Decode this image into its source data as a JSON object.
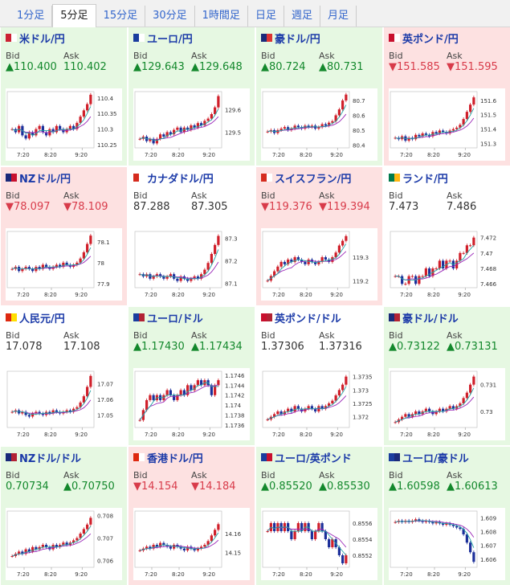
{
  "tabs": [
    {
      "label": "1分足",
      "active": false
    },
    {
      "label": "5分足",
      "active": true
    },
    {
      "label": "15分足",
      "active": false
    },
    {
      "label": "30分足",
      "active": false
    },
    {
      "label": "1時間足",
      "active": false
    },
    {
      "label": "日足",
      "active": false
    },
    {
      "label": "週足",
      "active": false
    },
    {
      "label": "月足",
      "active": false
    }
  ],
  "colors": {
    "up": "#13882c",
    "down": "#d83b4a",
    "candle_up": "#d01f2a",
    "candle_down": "#1c2f9a",
    "ma_fast": "#9a27b8",
    "ma_slow": "#21a3a3"
  },
  "bid_label": "Bid",
  "ask_label": "Ask",
  "x_ticks": [
    "7:20",
    "8:20",
    "9:20"
  ],
  "pairs": [
    {
      "name": "米ドル/円",
      "dir": "up",
      "bid": "▲110.400",
      "ask": "110.402",
      "flag": [
        "#cc2233",
        "#ffffff"
      ],
      "chart_data": {
        "type": "candlestick",
        "yticks": [
          "110.4",
          "110.35",
          "110.3",
          "110.25"
        ],
        "ymin": 110.24,
        "ymax": 110.42,
        "series": [
          110.3,
          110.29,
          110.31,
          110.28,
          110.27,
          110.29,
          110.28,
          110.3,
          110.31,
          110.29,
          110.28,
          110.3,
          110.29,
          110.31,
          110.3,
          110.29,
          110.3,
          110.31,
          110.3,
          110.32,
          110.34,
          110.36,
          110.38,
          110.41
        ]
      }
    },
    {
      "name": "ユーロ/円",
      "dir": "up",
      "bid": "▲129.643",
      "ask": "▲129.648",
      "flag": [
        "#1a3d9e",
        "#ffffff"
      ],
      "chart_data": {
        "type": "candlestick",
        "yticks": [
          "129.6",
          "129.5"
        ],
        "ymin": 129.43,
        "ymax": 129.68,
        "series": [
          129.47,
          129.48,
          129.46,
          129.47,
          129.45,
          129.47,
          129.49,
          129.48,
          129.5,
          129.49,
          129.51,
          129.52,
          129.5,
          129.52,
          129.51,
          129.53,
          129.52,
          129.54,
          129.53,
          129.55,
          129.56,
          129.58,
          129.61,
          129.66
        ]
      }
    },
    {
      "name": "豪ドル/円",
      "dir": "up",
      "bid": "▲80.724",
      "ask": "▲80.731",
      "flag": [
        "#1a2a7a",
        "#d33"
      ],
      "chart_data": {
        "type": "candlestick",
        "yticks": [
          "80.7",
          "80.6",
          "80.5",
          "80.4"
        ],
        "ymin": 80.38,
        "ymax": 80.76,
        "series": [
          80.49,
          80.5,
          80.48,
          80.5,
          80.51,
          80.52,
          80.5,
          80.51,
          80.53,
          80.52,
          80.51,
          80.53,
          80.52,
          80.53,
          80.51,
          80.52,
          80.54,
          80.53,
          80.55,
          80.56,
          80.6,
          80.64,
          80.7,
          80.74
        ]
      }
    },
    {
      "name": "英ポンド/円",
      "dir": "down",
      "bid": "▼151.585",
      "ask": "▼151.595",
      "flag": [
        "#c8102e",
        "#ffffff"
      ],
      "chart_data": {
        "type": "candlestick",
        "yticks": [
          "151.6",
          "151.5",
          "151.4",
          "151.3"
        ],
        "ymin": 151.27,
        "ymax": 151.66,
        "series": [
          151.34,
          151.33,
          151.35,
          151.32,
          151.34,
          151.33,
          151.36,
          151.35,
          151.37,
          151.36,
          151.35,
          151.38,
          151.37,
          151.39,
          151.38,
          151.37,
          151.39,
          151.4,
          151.41,
          151.43,
          151.47,
          151.52,
          151.57,
          151.62
        ]
      }
    },
    {
      "name": "NZドル/円",
      "dir": "down",
      "bid": "▼78.097",
      "ask": "▼78.109",
      "flag": [
        "#1a2a7a",
        "#c8102e"
      ],
      "chart_data": {
        "type": "candlestick",
        "yticks": [
          "78.1",
          "78",
          "77.9"
        ],
        "ymin": 77.88,
        "ymax": 78.15,
        "series": [
          77.97,
          77.98,
          77.96,
          77.97,
          77.98,
          77.97,
          77.96,
          77.98,
          77.97,
          77.99,
          77.98,
          77.97,
          77.98,
          77.99,
          77.98,
          78.0,
          77.99,
          77.98,
          77.99,
          78.0,
          78.02,
          78.05,
          78.09,
          78.13
        ]
      }
    },
    {
      "name": "カナダドル/円",
      "dir": "flat",
      "bid": "87.288",
      "ask": "87.305",
      "flag": [
        "#d52b1e",
        "#ffffff"
      ],
      "chart_data": {
        "type": "candlestick",
        "yticks": [
          "87.3",
          "87.2",
          "87.1"
        ],
        "ymin": 87.08,
        "ymax": 87.33,
        "series": [
          87.14,
          87.13,
          87.14,
          87.12,
          87.13,
          87.14,
          87.13,
          87.12,
          87.13,
          87.14,
          87.12,
          87.11,
          87.13,
          87.12,
          87.11,
          87.12,
          87.13,
          87.12,
          87.14,
          87.16,
          87.19,
          87.23,
          87.27,
          87.31
        ]
      }
    },
    {
      "name": "スイスフラン/円",
      "dir": "down",
      "bid": "▼119.376",
      "ask": "▼119.394",
      "flag": [
        "#d52b1e",
        "#ffffff"
      ],
      "chart_data": {
        "type": "candlestick",
        "yticks": [
          "119.3",
          "119.2"
        ],
        "ymin": 119.17,
        "ymax": 119.41,
        "series": [
          119.2,
          119.22,
          119.24,
          119.26,
          119.28,
          119.27,
          119.29,
          119.28,
          119.3,
          119.29,
          119.28,
          119.27,
          119.29,
          119.28,
          119.27,
          119.28,
          119.3,
          119.29,
          119.28,
          119.3,
          119.32,
          119.35,
          119.37,
          119.39
        ]
      }
    },
    {
      "name": "ランド/円",
      "dir": "flat",
      "bid": "7.473",
      "ask": "7.486",
      "flag": [
        "#007a4d",
        "#ffb612"
      ],
      "chart_data": {
        "type": "candlestick",
        "yticks": [
          "7.472",
          "7.47",
          "7.468",
          "7.466"
        ],
        "ymin": 7.4655,
        "ymax": 7.4728,
        "series": [
          7.467,
          7.467,
          7.466,
          7.466,
          7.467,
          7.467,
          7.466,
          7.467,
          7.467,
          7.468,
          7.467,
          7.468,
          7.468,
          7.469,
          7.468,
          7.469,
          7.469,
          7.468,
          7.469,
          7.47,
          7.47,
          7.471,
          7.471,
          7.472
        ]
      }
    },
    {
      "name": "人民元/円",
      "dir": "flat",
      "bid": "17.078",
      "ask": "17.108",
      "flag": [
        "#de2910",
        "#ffde00"
      ],
      "chart_data": {
        "type": "candlestick",
        "yticks": [
          "17.07",
          "17.06",
          "17.05"
        ],
        "ymin": 17.042,
        "ymax": 17.078,
        "series": [
          17.052,
          17.053,
          17.051,
          17.052,
          17.05,
          17.049,
          17.051,
          17.052,
          17.051,
          17.05,
          17.052,
          17.051,
          17.053,
          17.052,
          17.051,
          17.052,
          17.053,
          17.052,
          17.054,
          17.055,
          17.058,
          17.062,
          17.068,
          17.075
        ]
      }
    },
    {
      "name": "ユーロ/ドル",
      "dir": "up",
      "bid": "▲1.17430",
      "ask": "▲1.17434",
      "flag": [
        "#1a3d9e",
        "#b22234"
      ],
      "chart_data": {
        "type": "candlestick",
        "yticks": [
          "1.1746",
          "1.1744",
          "1.1742",
          "1.174",
          "1.1738",
          "1.1736"
        ],
        "ymin": 1.17355,
        "ymax": 1.17468,
        "series": [
          1.1737,
          1.1739,
          1.1741,
          1.1742,
          1.1741,
          1.1742,
          1.1741,
          1.1742,
          1.1743,
          1.1742,
          1.1741,
          1.1742,
          1.1743,
          1.1742,
          1.1744,
          1.1743,
          1.1744,
          1.1745,
          1.1744,
          1.1745,
          1.1744,
          1.1742,
          1.1744,
          1.1745
        ]
      }
    },
    {
      "name": "英ポンド/ドル",
      "dir": "flat",
      "bid": "1.37306",
      "ask": "1.37316",
      "flag": [
        "#c8102e",
        "#b22234"
      ],
      "chart_data": {
        "type": "candlestick",
        "yticks": [
          "1.3735",
          "1.373",
          "1.3725",
          "1.372"
        ],
        "ymin": 1.3716,
        "ymax": 1.3737,
        "series": [
          1.3719,
          1.372,
          1.3721,
          1.3722,
          1.3721,
          1.3722,
          1.3723,
          1.3722,
          1.3724,
          1.3723,
          1.3722,
          1.3723,
          1.3724,
          1.3723,
          1.3722,
          1.3724,
          1.3723,
          1.3724,
          1.3725,
          1.3726,
          1.3728,
          1.373,
          1.3732,
          1.3735
        ]
      }
    },
    {
      "name": "豪ドル/ドル",
      "dir": "up",
      "bid": "▲0.73122",
      "ask": "▲0.73131",
      "flag": [
        "#1a2a7a",
        "#b22234"
      ],
      "chart_data": {
        "type": "candlestick",
        "yticks": [
          "0.731",
          "0.73"
        ],
        "ymin": 0.7294,
        "ymax": 0.7315,
        "series": [
          0.7296,
          0.7297,
          0.7298,
          0.7299,
          0.7298,
          0.7299,
          0.73,
          0.7299,
          0.73,
          0.7301,
          0.73,
          0.7299,
          0.73,
          0.7301,
          0.73,
          0.7301,
          0.7302,
          0.7301,
          0.7302,
          0.7303,
          0.7305,
          0.7307,
          0.731,
          0.7313
        ]
      }
    },
    {
      "name": "NZドル/ドル",
      "dir": "up",
      "bid": "0.70734",
      "ask": "▲0.70750",
      "flag": [
        "#1a2a7a",
        "#b22234"
      ],
      "chart_data": {
        "type": "candlestick",
        "yticks": [
          "0.708",
          "0.707",
          "0.706"
        ],
        "ymin": 0.7057,
        "ymax": 0.7082,
        "series": [
          0.7062,
          0.7063,
          0.7064,
          0.7063,
          0.7065,
          0.7064,
          0.7066,
          0.7065,
          0.7066,
          0.7067,
          0.7066,
          0.7065,
          0.7067,
          0.7066,
          0.7067,
          0.7068,
          0.7067,
          0.7068,
          0.7069,
          0.707,
          0.7072,
          0.7074,
          0.7076,
          0.7079
        ]
      }
    },
    {
      "name": "香港ドル/円",
      "dir": "down",
      "bid": "▼14.154",
      "ask": "▼14.184",
      "flag": [
        "#de2910",
        "#ffffff"
      ],
      "chart_data": {
        "type": "candlestick",
        "yticks": [
          "14.16",
          "14.15"
        ],
        "ymin": 14.142,
        "ymax": 14.172,
        "series": [
          14.151,
          14.152,
          14.153,
          14.152,
          14.154,
          14.153,
          14.155,
          14.154,
          14.153,
          14.152,
          14.154,
          14.153,
          14.152,
          14.151,
          14.153,
          14.152,
          14.151,
          14.152,
          14.153,
          14.154,
          14.156,
          14.159,
          14.162,
          14.165
        ]
      }
    },
    {
      "name": "ユーロ/英ポンド",
      "dir": "up",
      "bid": "▲0.85520",
      "ask": "▲0.85530",
      "flag": [
        "#1a3d9e",
        "#c8102e"
      ],
      "chart_data": {
        "type": "candlestick",
        "yticks": [
          "0.8556",
          "0.8554",
          "0.8552"
        ],
        "ymin": 0.85505,
        "ymax": 0.85575,
        "series": [
          0.8555,
          0.8556,
          0.8555,
          0.8556,
          0.8555,
          0.8556,
          0.8555,
          0.8554,
          0.8555,
          0.8556,
          0.8555,
          0.8556,
          0.8555,
          0.8554,
          0.8555,
          0.8556,
          0.8555,
          0.8554,
          0.8553,
          0.8554,
          0.8553,
          0.8552,
          0.8551,
          0.8552
        ]
      }
    },
    {
      "name": "ユーロ/豪ドル",
      "dir": "up",
      "bid": "▲1.60598",
      "ask": "▲1.60613",
      "flag": [
        "#1a3d9e",
        "#1a2a7a"
      ],
      "chart_data": {
        "type": "candlestick",
        "yticks": [
          "1.609",
          "1.608",
          "1.607",
          "1.606"
        ],
        "ymin": 1.6054,
        "ymax": 1.6095,
        "series": [
          1.6087,
          1.6088,
          1.6087,
          1.6088,
          1.6087,
          1.6088,
          1.6089,
          1.6088,
          1.6087,
          1.6088,
          1.6087,
          1.6086,
          1.6087,
          1.6086,
          1.6085,
          1.6086,
          1.6085,
          1.6084,
          1.6083,
          1.6082,
          1.6078,
          1.6072,
          1.6065,
          1.6058
        ]
      }
    }
  ]
}
